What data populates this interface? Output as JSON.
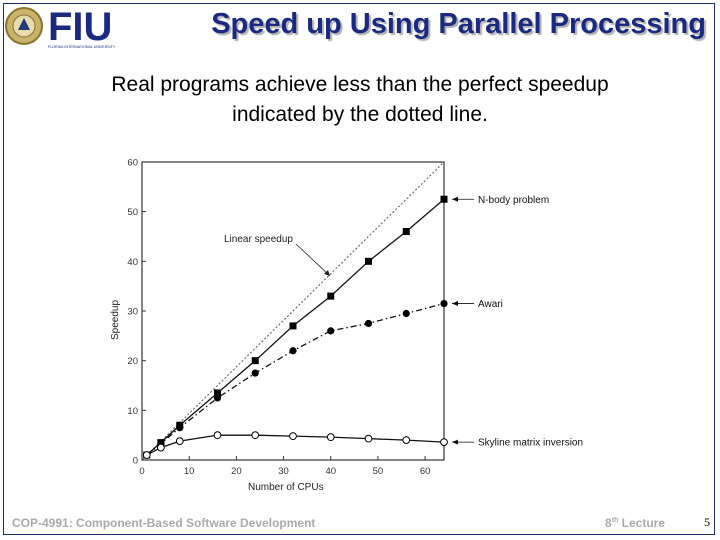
{
  "slide": {
    "title": "Speed up Using Parallel Processing",
    "subtitle_line1": "Real programs achieve less than the perfect speedup",
    "subtitle_line2": "indicated by the dotted line.",
    "logo_text": "FIU",
    "logo_subtext": "FLORIDA INTERNATIONAL UNIVERSITY",
    "footer_course": "COP-4991: Component-Based Software Development",
    "footer_lecture_num": "8",
    "footer_lecture_sup": "th",
    "footer_lecture_word": "Lecture",
    "page_number": "5"
  },
  "chart_data": {
    "type": "line",
    "xlabel": "Number of CPUs",
    "ylabel": "Speedup",
    "xlim": [
      0,
      64
    ],
    "ylim": [
      0,
      60
    ],
    "xticks": [
      0,
      10,
      20,
      30,
      40,
      50,
      60
    ],
    "yticks": [
      0,
      10,
      20,
      30,
      40,
      50,
      60
    ],
    "grid": false,
    "annotation": "Linear speedup",
    "series": [
      {
        "name": "N-body problem",
        "marker": "filled-square",
        "line": "solid",
        "x": [
          1,
          4,
          8,
          16,
          24,
          32,
          40,
          48,
          56,
          64
        ],
        "y": [
          1,
          3.5,
          7,
          13.5,
          20,
          27,
          33,
          40,
          46,
          52.5
        ]
      },
      {
        "name": "Awari",
        "marker": "filled-circle",
        "line": "dash-dot",
        "x": [
          1,
          4,
          8,
          16,
          24,
          32,
          40,
          48,
          56,
          64
        ],
        "y": [
          1,
          3.3,
          6.5,
          12.5,
          17.5,
          22,
          26,
          27.5,
          29.5,
          31.5
        ]
      },
      {
        "name": "Skyline matrix inversion",
        "marker": "open-circle",
        "line": "solid",
        "x": [
          1,
          4,
          8,
          16,
          24,
          32,
          40,
          48,
          56,
          64
        ],
        "y": [
          1,
          2.5,
          3.8,
          5,
          5,
          4.8,
          4.6,
          4.3,
          4.0,
          3.6
        ]
      }
    ]
  }
}
